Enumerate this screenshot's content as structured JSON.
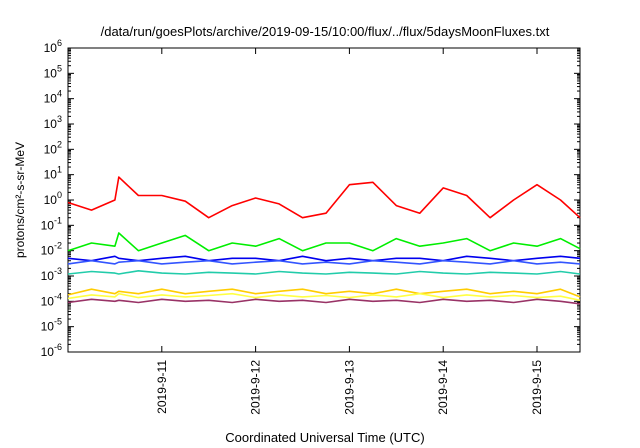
{
  "chart_data": {
    "type": "line",
    "title": "/data/run/goesPlots/archive/2019-09-15/10:00/flux/../flux/5daysMoonFluxes.txt",
    "xlabel": "Coordinated Universal Time (UTC)",
    "ylabel": "protons/cm²-s-sr-MeV",
    "yscale": "log",
    "grid": false,
    "legend": "none",
    "xlim": [
      "2019-09-10T00:00",
      "2019-09-15T11:00"
    ],
    "ylim": [
      1e-06,
      1000000.0
    ],
    "x_ticks": [
      {
        "date": "2019-09-11T00:00",
        "label": "2019-9-11"
      },
      {
        "date": "2019-09-12T00:00",
        "label": "2019-9-12"
      },
      {
        "date": "2019-09-13T00:00",
        "label": "2019-9-13"
      },
      {
        "date": "2019-09-14T00:00",
        "label": "2019-9-14"
      },
      {
        "date": "2019-09-15T00:00",
        "label": "2019-9-15"
      }
    ],
    "y_ticks": [
      {
        "value": 1e-06,
        "base": "10",
        "exp": "-6"
      },
      {
        "value": 1e-05,
        "base": "10",
        "exp": "-5"
      },
      {
        "value": 0.0001,
        "base": "10",
        "exp": "-4"
      },
      {
        "value": 0.001,
        "base": "10",
        "exp": "-3"
      },
      {
        "value": 0.01,
        "base": "10",
        "exp": "-2"
      },
      {
        "value": 0.1,
        "base": "10",
        "exp": "-1"
      },
      {
        "value": 1,
        "base": "10",
        "exp": "0"
      },
      {
        "value": 10,
        "base": "10",
        "exp": "1"
      },
      {
        "value": 100,
        "base": "10",
        "exp": "2"
      },
      {
        "value": 1000,
        "base": "10",
        "exp": "3"
      },
      {
        "value": 10000,
        "base": "10",
        "exp": "4"
      },
      {
        "value": 100000,
        "base": "10",
        "exp": "5"
      },
      {
        "value": 1000000,
        "base": "10",
        "exp": "6"
      }
    ],
    "x": [
      "2019-09-10T00:00",
      "2019-09-10T06:00",
      "2019-09-10T12:00",
      "2019-09-10T13:00",
      "2019-09-10T18:00",
      "2019-09-11T00:00",
      "2019-09-11T06:00",
      "2019-09-11T12:00",
      "2019-09-11T18:00",
      "2019-09-12T00:00",
      "2019-09-12T06:00",
      "2019-09-12T12:00",
      "2019-09-12T18:00",
      "2019-09-13T00:00",
      "2019-09-13T06:00",
      "2019-09-13T12:00",
      "2019-09-13T18:00",
      "2019-09-14T00:00",
      "2019-09-14T06:00",
      "2019-09-14T12:00",
      "2019-09-14T18:00",
      "2019-09-15T00:00",
      "2019-09-15T06:00",
      "2019-09-15T11:00"
    ],
    "series": [
      {
        "color": "#ff0000",
        "values": [
          0.8,
          0.4,
          1.0,
          8,
          1.5,
          1.5,
          0.9,
          0.2,
          0.6,
          1.2,
          0.7,
          0.2,
          0.3,
          4,
          5,
          0.6,
          0.3,
          3,
          1.5,
          0.2,
          1,
          4,
          1,
          0.2
        ]
      },
      {
        "color": "#00ee00",
        "values": [
          0.01,
          0.02,
          0.015,
          0.05,
          0.01,
          0.02,
          0.04,
          0.01,
          0.02,
          0.015,
          0.03,
          0.01,
          0.02,
          0.02,
          0.01,
          0.03,
          0.015,
          0.02,
          0.03,
          0.01,
          0.02,
          0.015,
          0.03,
          0.012
        ]
      },
      {
        "color": "#0000ee",
        "values": [
          0.005,
          0.004,
          0.006,
          0.005,
          0.004,
          0.005,
          0.006,
          0.004,
          0.005,
          0.005,
          0.004,
          0.006,
          0.004,
          0.005,
          0.004,
          0.005,
          0.005,
          0.004,
          0.006,
          0.005,
          0.004,
          0.005,
          0.006,
          0.005
        ]
      },
      {
        "color": "#3355ff",
        "values": [
          0.003,
          0.004,
          0.003,
          0.0035,
          0.004,
          0.003,
          0.0035,
          0.004,
          0.003,
          0.0035,
          0.004,
          0.003,
          0.0035,
          0.003,
          0.004,
          0.0035,
          0.003,
          0.004,
          0.0035,
          0.003,
          0.004,
          0.003,
          0.0035,
          0.003
        ]
      },
      {
        "color": "#22ccaa",
        "values": [
          0.0012,
          0.0015,
          0.0013,
          0.0012,
          0.0016,
          0.0013,
          0.0012,
          0.0014,
          0.0013,
          0.0012,
          0.0015,
          0.0013,
          0.0012,
          0.0014,
          0.0013,
          0.0012,
          0.0015,
          0.0013,
          0.0012,
          0.0014,
          0.0013,
          0.0012,
          0.0015,
          0.0012
        ]
      },
      {
        "color": "#ffcc00",
        "values": [
          0.00018,
          0.0003,
          0.0002,
          0.00025,
          0.0002,
          0.0003,
          0.0002,
          0.00025,
          0.0003,
          0.0002,
          0.00025,
          0.0003,
          0.0002,
          0.00025,
          0.0002,
          0.0003,
          0.0002,
          0.00025,
          0.0003,
          0.0002,
          0.00025,
          0.0002,
          0.0003,
          0.00015
        ]
      },
      {
        "color": "#ffff44",
        "values": [
          0.00013,
          0.00018,
          0.00015,
          0.0002,
          0.00014,
          0.00018,
          0.00015,
          0.00017,
          0.0002,
          0.00014,
          0.00018,
          0.00015,
          0.00017,
          0.00014,
          0.00018,
          0.00015,
          0.0002,
          0.00014,
          0.00018,
          0.00015,
          0.00017,
          0.00014,
          0.00016,
          0.00011
        ]
      },
      {
        "color": "#993366",
        "values": [
          9e-05,
          0.00012,
          0.0001,
          0.00011,
          9e-05,
          0.00012,
          0.0001,
          0.00011,
          9e-05,
          0.00012,
          0.0001,
          0.00011,
          9e-05,
          0.00012,
          0.0001,
          0.00011,
          9e-05,
          0.00012,
          0.0001,
          0.00011,
          9e-05,
          0.00012,
          0.0001,
          8e-05
        ]
      }
    ]
  }
}
